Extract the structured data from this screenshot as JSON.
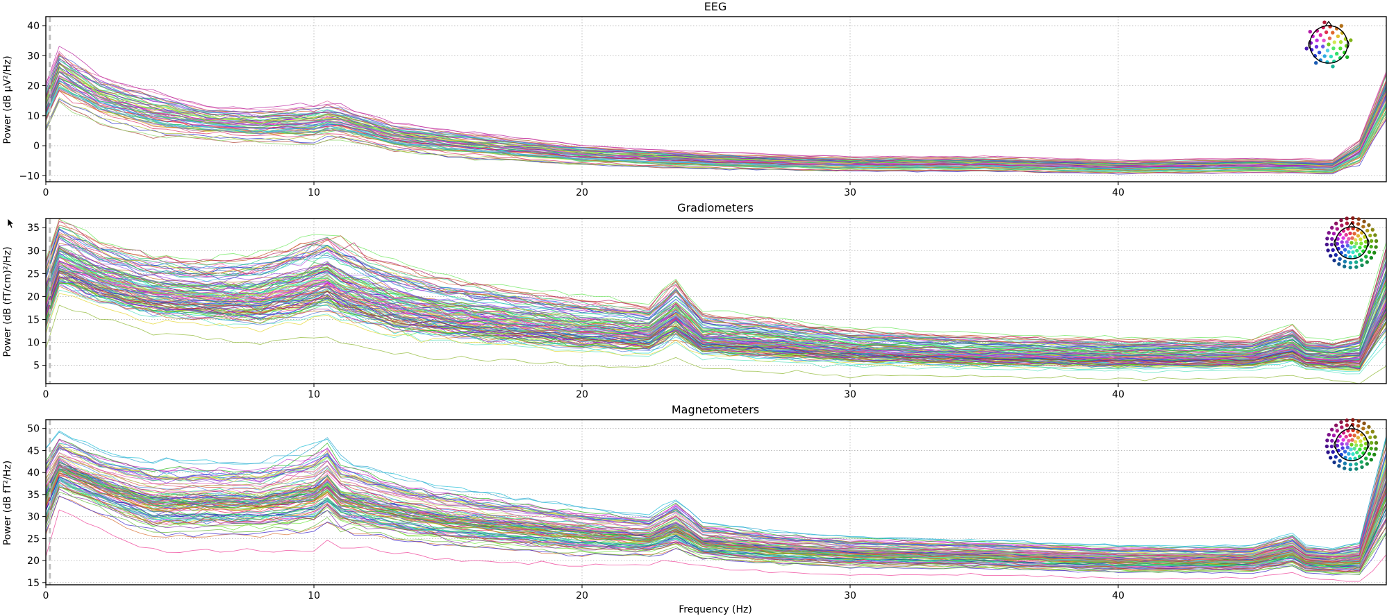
{
  "chart_data": [
    {
      "type": "line",
      "title": "EEG",
      "ylabel": "Power (dB μV²/Hz)",
      "xlabel": "",
      "xlim": [
        0,
        50
      ],
      "ylim": [
        -12,
        43
      ],
      "xticks": [
        0,
        10,
        20,
        30,
        40
      ],
      "yticks": [
        -10,
        0,
        10,
        20,
        30,
        40
      ],
      "grid": true,
      "n_channels": 60,
      "inset": "sensor-topomap-eeg",
      "profile": {
        "freqs": [
          0,
          0.5,
          2,
          4,
          6,
          8,
          10,
          10.5,
          11,
          13,
          15,
          20,
          25,
          30,
          35,
          40,
          45,
          48,
          49,
          50
        ],
        "mean": [
          13,
          24,
          16,
          11,
          8,
          7,
          7.5,
          8.5,
          8,
          3,
          1,
          -3,
          -5,
          -6,
          -6,
          -7,
          -6.5,
          -7,
          -2,
          17
        ],
        "spread": [
          4,
          5,
          4,
          4,
          3,
          3,
          3.5,
          3.5,
          3,
          2.5,
          2.5,
          1.8,
          1.5,
          1.3,
          1.3,
          1.2,
          1.2,
          1.2,
          2,
          4
        ]
      }
    },
    {
      "type": "line",
      "title": "Gradiometers",
      "ylabel": "Power (dB (fT/cm)²/Hz)",
      "xlabel": "",
      "xlim": [
        0,
        50
      ],
      "ylim": [
        1,
        37
      ],
      "xticks": [
        0,
        10,
        20,
        30,
        40
      ],
      "yticks": [
        5,
        10,
        15,
        20,
        25,
        30,
        35
      ],
      "grid": true,
      "n_channels": 110,
      "inset": "sensor-topomap-grad",
      "profile": {
        "freqs": [
          0,
          0.5,
          2,
          4,
          6,
          8,
          10,
          10.5,
          11,
          13,
          15,
          20,
          22.5,
          23.5,
          24.5,
          27,
          30,
          35,
          40,
          45,
          46.5,
          47,
          48,
          49,
          50
        ],
        "mean": [
          19,
          28,
          24,
          21,
          20,
          20,
          23,
          24,
          22,
          18,
          16,
          13,
          12,
          16,
          11,
          10,
          8.5,
          7.5,
          7,
          7,
          9,
          7,
          6.5,
          7,
          20
        ],
        "spread": [
          4,
          4,
          3.5,
          3.5,
          3.5,
          4,
          4.5,
          4.5,
          4.5,
          4,
          3.5,
          3,
          2.8,
          3.5,
          2.5,
          2.3,
          2,
          1.8,
          1.7,
          1.6,
          2,
          1.6,
          1.6,
          2,
          5
        ]
      }
    },
    {
      "type": "line",
      "title": "Magnetometers",
      "ylabel": "Power (dB fT²/Hz)",
      "xlabel": "Frequency (Hz)",
      "xlim": [
        0,
        50
      ],
      "ylim": [
        14.5,
        52
      ],
      "xticks": [
        0,
        10,
        20,
        30,
        40
      ],
      "yticks": [
        15,
        20,
        25,
        30,
        35,
        40,
        45,
        50
      ],
      "grid": true,
      "n_channels": 100,
      "inset": "sensor-topomap-mag",
      "profile": {
        "freqs": [
          0,
          0.5,
          2,
          4,
          6,
          8,
          10,
          10.5,
          11,
          13,
          15,
          20,
          22.5,
          23.5,
          24.5,
          27,
          30,
          35,
          40,
          45,
          46.5,
          47,
          48,
          49,
          50
        ],
        "mean": [
          34,
          41,
          37,
          33,
          33,
          33,
          35,
          37,
          34,
          31,
          29,
          26,
          25,
          27.5,
          24,
          22.5,
          21.5,
          21,
          20,
          20,
          22,
          20,
          19.5,
          20,
          36
        ],
        "spread": [
          4,
          3,
          3,
          3.5,
          3.5,
          3.5,
          4,
          4,
          3.5,
          3,
          2.8,
          2.3,
          2,
          2.5,
          1.8,
          1.6,
          1.5,
          1.4,
          1.3,
          1.3,
          1.6,
          1.3,
          1.3,
          1.6,
          5
        ]
      }
    }
  ],
  "colors": {
    "axis": "#000000",
    "grid": "#b0b0b0",
    "dashed_marker": "#c0c0c0",
    "head_outline": "#000000"
  }
}
